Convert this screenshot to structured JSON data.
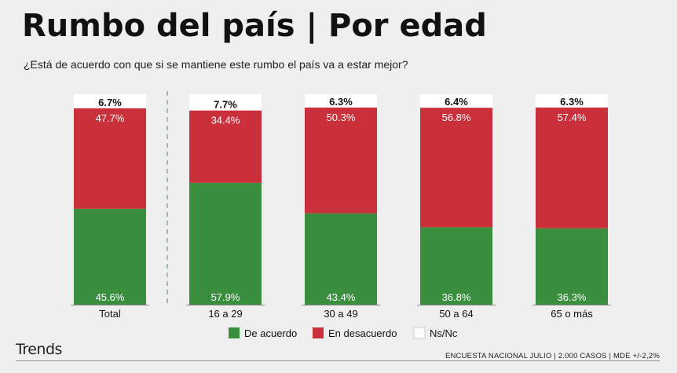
{
  "header": {
    "title": "Rumbo del país | Por edad",
    "subtitle": "¿Está de acuerdo con que si se mantiene este rumbo el país va a estar mejor?"
  },
  "footer": {
    "brand": "Trends",
    "note": "ENCUESTA NACIONAL JULIO | 2.000 CASOS | MDE +/-2,2%"
  },
  "chart_data": {
    "type": "bar",
    "stacked": true,
    "categories": [
      "Total",
      "16 a 29",
      "30 a 49",
      "50 a 64",
      "65 o más"
    ],
    "series": [
      {
        "name": "De acuerdo",
        "color": "#3a8f3f",
        "values": [
          45.6,
          57.9,
          43.4,
          36.8,
          36.3
        ]
      },
      {
        "name": "En desacuerdo",
        "color": "#c9303a",
        "values": [
          47.7,
          34.4,
          50.3,
          56.8,
          57.4
        ]
      },
      {
        "name": "Ns/Nc",
        "color": "#ffffff",
        "values": [
          6.7,
          7.7,
          6.3,
          6.4,
          6.3
        ]
      }
    ],
    "labels": [
      [
        "45.6%",
        "57.9%",
        "43.4%",
        "36.8%",
        "36.3%"
      ],
      [
        "47.7%",
        "34.4%",
        "50.3%",
        "56.8%",
        "57.4%"
      ],
      [
        "6.7%",
        "7.7%",
        "6.3%",
        "6.4%",
        "6.3%"
      ]
    ],
    "legend_position": "bottom"
  }
}
